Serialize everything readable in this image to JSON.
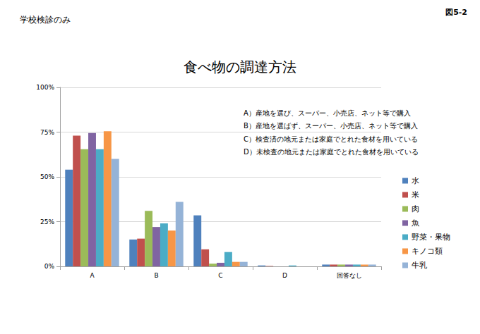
{
  "chart_data": {
    "type": "bar",
    "title": "食べ物の調達方法",
    "subtitle": "学校検診のみ",
    "figure_label": "図5-2",
    "annotations": [
      "A）産地を選び、スーパー、小売店、ネット等で購入",
      "B）産地を選ばず、スーパー、小売店、ネット等で購入",
      "C）検査済の地元または家庭でとれた食材を用いている",
      "D）未検査の地元または家庭でとれた食材を用いている"
    ],
    "categories": [
      "A",
      "B",
      "C",
      "D",
      "回答なし"
    ],
    "series": [
      {
        "name": "水",
        "color": "#4F81BD",
        "values": [
          54,
          15,
          28.5,
          0.5,
          1
        ]
      },
      {
        "name": "米",
        "color": "#C0504D",
        "values": [
          73,
          15.5,
          9.5,
          0.2,
          1
        ]
      },
      {
        "name": "肉",
        "color": "#9BBB59",
        "values": [
          65.5,
          31,
          1.5,
          0,
          1
        ]
      },
      {
        "name": "魚",
        "color": "#8064A2",
        "values": [
          74.5,
          22,
          2,
          0,
          1
        ]
      },
      {
        "name": "野菜・果物",
        "color": "#4BACC6",
        "values": [
          65.5,
          24,
          8,
          0.5,
          1
        ]
      },
      {
        "name": "キノコ類",
        "color": "#F79646",
        "values": [
          75.5,
          20,
          2.5,
          0,
          1
        ]
      },
      {
        "name": "牛乳",
        "color": "#95B3D7",
        "values": [
          60,
          36,
          2.5,
          0,
          1
        ]
      }
    ],
    "ylim": [
      0,
      100
    ],
    "yticks": [
      {
        "value": 0,
        "label": "0%"
      },
      {
        "value": 25,
        "label": "25%"
      },
      {
        "value": 50,
        "label": "50%"
      },
      {
        "value": 75,
        "label": "75%"
      },
      {
        "value": 100,
        "label": "100%"
      }
    ],
    "grid": true,
    "legend": "right"
  }
}
